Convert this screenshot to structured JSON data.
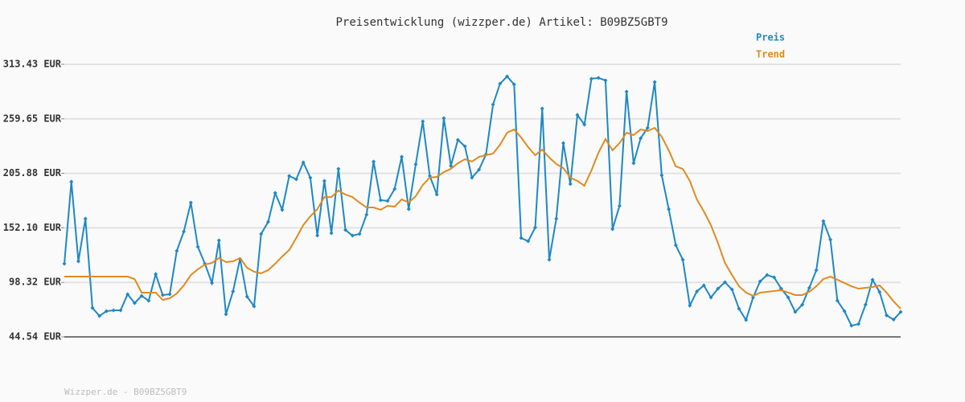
{
  "chart_data": {
    "type": "line",
    "title": "Preisentwicklung (wizzper.de) Artikel: B09BZ5GBT9",
    "footer": "Wizzper.de - B09BZ5GBT9",
    "ylim": [
      44.54,
      313.43
    ],
    "yticks": [
      {
        "value": 44.54,
        "label": "44.54 EUR"
      },
      {
        "value": 98.32,
        "label": "98.32 EUR"
      },
      {
        "value": 152.1,
        "label": "152.10 EUR"
      },
      {
        "value": 205.88,
        "label": "205.88 EUR"
      },
      {
        "value": 259.65,
        "label": "259.65 EUR"
      },
      {
        "value": 313.43,
        "label": "313.43 EUR"
      }
    ],
    "grid": true,
    "legend": "top-right",
    "series": [
      {
        "name": "Preis",
        "color": "#1e88c4",
        "markers": true,
        "values": [
          116.7,
          197.6,
          119.1,
          161.1,
          73.1,
          65.2,
          69.9,
          70.7,
          70.7,
          86.6,
          77.9,
          85.0,
          80.2,
          106.4,
          85.8,
          86.6,
          129.4,
          148.4,
          177.0,
          133.4,
          116.7,
          97.7,
          139.7,
          66.8,
          89.4,
          121.5,
          84.2,
          74.7,
          146.1,
          158.0,
          186.5,
          169.9,
          203.3,
          200.0,
          216.7,
          201.6,
          144.5,
          198.4,
          146.9,
          210.3,
          150.0,
          144.5,
          146.1,
          165.1,
          217.5,
          179.4,
          178.7,
          190.5,
          222.2,
          170.6,
          214.8,
          257.1,
          203.3,
          185.0,
          260.3,
          213.2,
          238.9,
          232.5,
          201.6,
          209.5,
          224.6,
          273.8,
          294.4,
          301.5,
          293.6,
          142.1,
          138.9,
          152.4,
          269.8,
          120.7,
          161.1,
          235.7,
          195.3,
          263.5,
          253.9,
          299.2,
          300.0,
          297.6,
          150.8,
          173.8,
          286.5,
          215.9,
          240.5,
          250.8,
          296.0,
          204.0,
          170.6,
          135.0,
          120.7,
          75.5,
          89.4,
          95.3,
          83.4,
          92.1,
          98.5,
          91.3,
          72.3,
          61.2,
          83.4,
          99.3,
          105.6,
          103.2,
          92.1,
          83.4,
          69.1,
          76.3,
          92.9,
          110.4,
          158.8,
          140.5,
          80.2,
          69.9,
          55.6,
          57.2,
          76.3,
          100.9,
          88.8,
          65.8,
          61.6,
          69.1
        ]
      },
      {
        "name": "Trend",
        "color": "#e08a1e",
        "markers": false,
        "values": [
          104.0,
          104.0,
          104.0,
          104.0,
          104.0,
          104.0,
          104.0,
          104.0,
          104.0,
          104.0,
          101.6,
          88.2,
          88.2,
          88.2,
          81.0,
          82.6,
          87.4,
          95.3,
          105.6,
          111.2,
          115.9,
          117.5,
          122.3,
          118.3,
          119.1,
          122.3,
          112.8,
          108.8,
          107.2,
          110.4,
          116.7,
          123.9,
          130.2,
          142.1,
          154.8,
          163.5,
          170.6,
          182.5,
          182.5,
          188.9,
          184.9,
          182.5,
          177.0,
          172.2,
          172.2,
          169.9,
          173.8,
          173.0,
          180.2,
          177.0,
          183.3,
          194.4,
          201.6,
          202.4,
          207.1,
          210.3,
          215.9,
          219.8,
          217.5,
          222.2,
          223.8,
          225.4,
          234.1,
          246.0,
          249.2,
          241.2,
          231.7,
          223.8,
          229.3,
          221.4,
          215.1,
          211.1,
          201.6,
          198.4,
          193.7,
          208.7,
          226.2,
          239.7,
          228.6,
          235.7,
          246.0,
          243.6,
          249.2,
          247.6,
          250.8,
          242.0,
          228.6,
          212.7,
          210.3,
          198.4,
          180.2,
          168.3,
          154.8,
          137.3,
          117.5,
          105.6,
          94.5,
          88.2,
          85.0,
          88.2,
          89.0,
          89.8,
          90.6,
          88.2,
          85.8,
          85.8,
          89.0,
          94.5,
          101.6,
          104.0,
          100.9,
          97.7,
          94.5,
          92.1,
          92.9,
          93.7,
          95.3,
          88.2,
          79.5,
          72.3
        ]
      }
    ]
  }
}
